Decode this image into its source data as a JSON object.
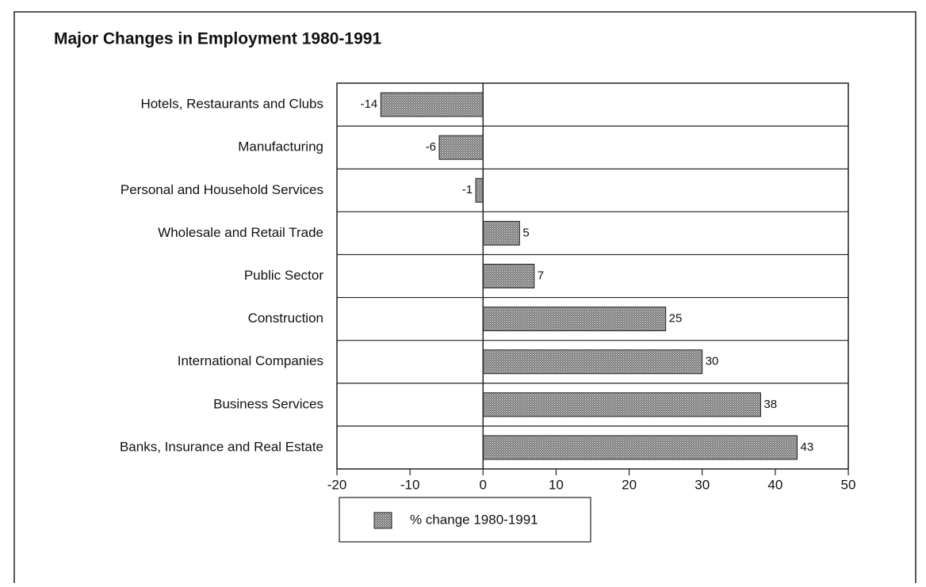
{
  "chart_data": {
    "type": "barh",
    "title": "Major Changes in Employment 1980-1991",
    "categories": [
      "Hotels, Restaurants and Clubs",
      "Manufacturing",
      "Personal and Household Services",
      "Wholesale and Retail Trade",
      "Public Sector",
      "Construction",
      "International Companies",
      "Business Services",
      "Banks, Insurance and Real Estate"
    ],
    "series": [
      {
        "name": "% change 1980-1991",
        "color": "#7a7a7a",
        "values": [
          -14,
          -6,
          -1,
          5,
          7,
          25,
          30,
          38,
          43
        ]
      }
    ],
    "xlim": [
      -20,
      50
    ],
    "xticks": [
      -20,
      -10,
      0,
      10,
      20,
      30,
      40,
      50
    ],
    "grid": true,
    "legend": "bottom"
  }
}
